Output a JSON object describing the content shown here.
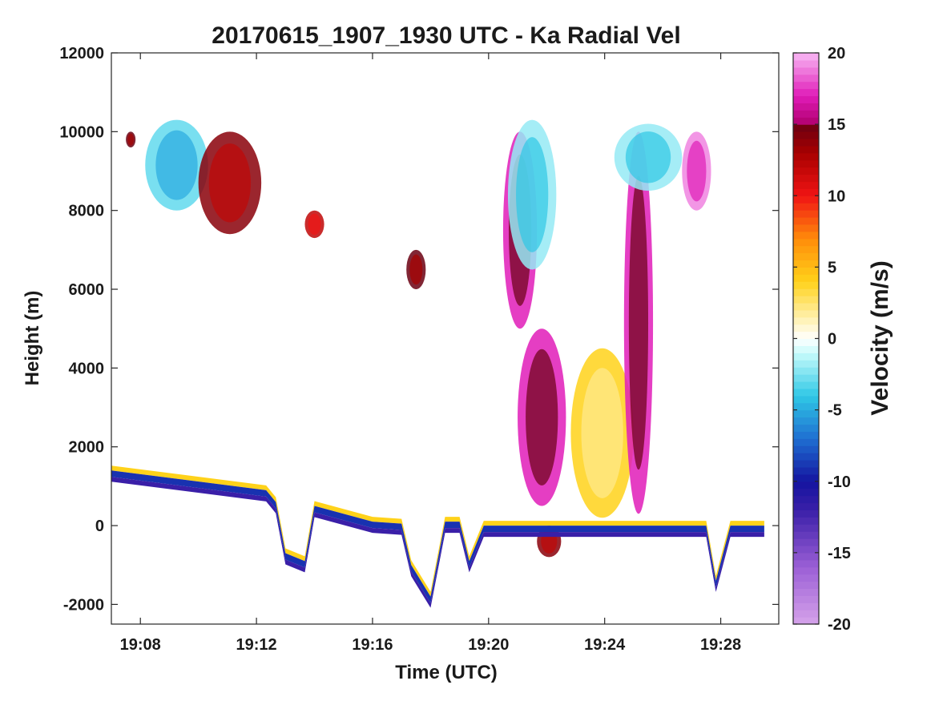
{
  "chart_data": {
    "type": "heatmap",
    "title": "20170615_1907_1930 UTC - Ka Radial Vel",
    "xlabel": "Time (UTC)",
    "ylabel": "Height (m)",
    "colorbar_label": "Velocity (m/s)",
    "xlim": [
      "19:07",
      "19:30"
    ],
    "ylim": [
      -2500,
      12000
    ],
    "clim": [
      -20,
      20
    ],
    "x_ticks": [
      "19:08",
      "19:12",
      "19:16",
      "19:20",
      "19:24",
      "19:28"
    ],
    "y_ticks": [
      12000,
      10000,
      8000,
      6000,
      4000,
      2000,
      0,
      -2000
    ],
    "colorbar_ticks": [
      20,
      15,
      10,
      5,
      0,
      -5,
      -10,
      -15,
      -20
    ],
    "grid": false,
    "colormap": {
      "stops": [
        {
          "v": -20,
          "color": "#d6a3ea"
        },
        {
          "v": -16,
          "color": "#9b5fd6"
        },
        {
          "v": -12,
          "color": "#3a1fa8"
        },
        {
          "v": -10,
          "color": "#1414a0"
        },
        {
          "v": -7,
          "color": "#1f6fd1"
        },
        {
          "v": -4,
          "color": "#2fc8e6"
        },
        {
          "v": -1,
          "color": "#c8fbfb"
        },
        {
          "v": 0,
          "color": "#ffffff"
        },
        {
          "v": 1,
          "color": "#fff6c8"
        },
        {
          "v": 4,
          "color": "#ffd21a"
        },
        {
          "v": 7,
          "color": "#ff8c0a"
        },
        {
          "v": 10,
          "color": "#f01414"
        },
        {
          "v": 13,
          "color": "#a80000"
        },
        {
          "v": 15,
          "color": "#6b0012"
        },
        {
          "v": 15.01,
          "color": "#b0006e"
        },
        {
          "v": 17,
          "color": "#e01cb8"
        },
        {
          "v": 20,
          "color": "#f8b8f4"
        }
      ]
    },
    "echo_regions": [
      {
        "t0": "19:07:30",
        "t1": "19:07:50",
        "h0": 9600,
        "h1": 10000,
        "v": 15
      },
      {
        "t0": "19:08:10",
        "t1": "19:10:20",
        "h0": 8000,
        "h1": 10300,
        "v": -3
      },
      {
        "t0": "19:10:00",
        "t1": "19:12:10",
        "h0": 7400,
        "h1": 10000,
        "v": 14
      },
      {
        "t0": "19:13:40",
        "t1": "19:14:20",
        "h0": 7300,
        "h1": 8000,
        "v": 12
      },
      {
        "t0": "19:17:10",
        "t1": "19:17:50",
        "h0": 6000,
        "h1": 7000,
        "v": 15
      },
      {
        "t0": "19:20:30",
        "t1": "19:21:40",
        "h0": 5000,
        "h1": 10000,
        "v": 17
      },
      {
        "t0": "19:20:40",
        "t1": "19:22:20",
        "h0": 6500,
        "h1": 10300,
        "v": -2
      },
      {
        "t0": "19:21:00",
        "t1": "19:22:40",
        "h0": 500,
        "h1": 5000,
        "v": 17
      },
      {
        "t0": "19:22:50",
        "t1": "19:25:00",
        "h0": 200,
        "h1": 4500,
        "v": 4
      },
      {
        "t0": "19:24:40",
        "t1": "19:25:40",
        "h0": 300,
        "h1": 10000,
        "v": 17
      },
      {
        "t0": "19:24:20",
        "t1": "19:26:40",
        "h0": 8500,
        "h1": 10200,
        "v": -2
      },
      {
        "t0": "19:26:40",
        "t1": "19:27:40",
        "h0": 8000,
        "h1": 10000,
        "v": 19
      },
      {
        "t0": "19:21:40",
        "t1": "19:22:30",
        "h0": -800,
        "h1": 0,
        "v": 14
      }
    ],
    "surface_band": {
      "v_top": 4,
      "v_mid": -9,
      "v_bottom": -12,
      "points": [
        {
          "t": "19:07:00",
          "h": 1400
        },
        {
          "t": "19:12:20",
          "h": 900
        },
        {
          "t": "19:12:40",
          "h": 600
        },
        {
          "t": "19:13:00",
          "h": -700
        },
        {
          "t": "19:13:40",
          "h": -900
        },
        {
          "t": "19:14:00",
          "h": 500
        },
        {
          "t": "19:16:00",
          "h": 100
        },
        {
          "t": "19:17:00",
          "h": 50
        },
        {
          "t": "19:17:20",
          "h": -1000
        },
        {
          "t": "19:18:00",
          "h": -1800
        },
        {
          "t": "19:18:30",
          "h": 100
        },
        {
          "t": "19:19:00",
          "h": 100
        },
        {
          "t": "19:19:20",
          "h": -900
        },
        {
          "t": "19:19:50",
          "h": 0
        },
        {
          "t": "19:27:30",
          "h": 0
        },
        {
          "t": "19:27:50",
          "h": -1400
        },
        {
          "t": "19:28:20",
          "h": 0
        },
        {
          "t": "19:29:30",
          "h": 0
        }
      ]
    }
  }
}
